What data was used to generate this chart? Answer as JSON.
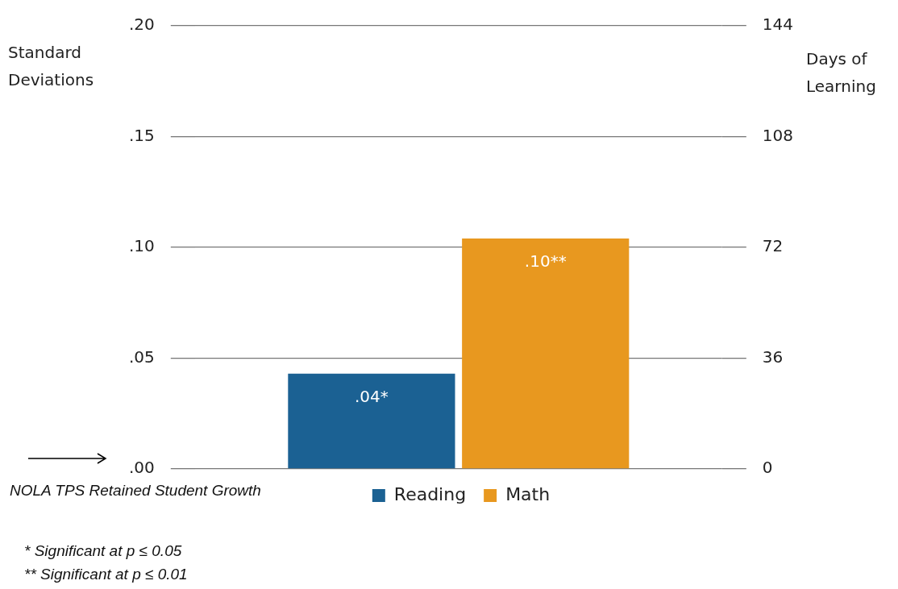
{
  "chart_data": {
    "type": "bar",
    "ylabel": "Standard Deviations",
    "y2label": "Days of Learning",
    "categories": [
      null
    ],
    "series": [
      {
        "name": "Reading",
        "color": "#1b6193",
        "values": [
          0.043
        ],
        "value_labels": [
          ".04*"
        ]
      },
      {
        "name": "Math",
        "color": "#e8981f",
        "values": [
          0.104
        ],
        "value_labels": [
          ".10**"
        ]
      }
    ],
    "ylim": [
      0,
      0.2
    ],
    "yticks": [
      {
        "value": 0,
        "label": ".00"
      },
      {
        "value": 0.05,
        "label": ".05"
      },
      {
        "value": 0.1,
        "label": ".10"
      },
      {
        "value": 0.15,
        "label": ".15"
      },
      {
        "value": 0.2,
        "label": ".20"
      }
    ],
    "y2lim": [
      0,
      144
    ],
    "y2ticks": [
      0,
      36,
      72,
      108,
      144
    ],
    "grid": "y",
    "legend": "bottom",
    "annotations": [
      "NOLA TPS Retained Student Growth",
      "* Significant at p ≤ 0.05",
      "** Significant at p ≤ 0.01"
    ]
  }
}
